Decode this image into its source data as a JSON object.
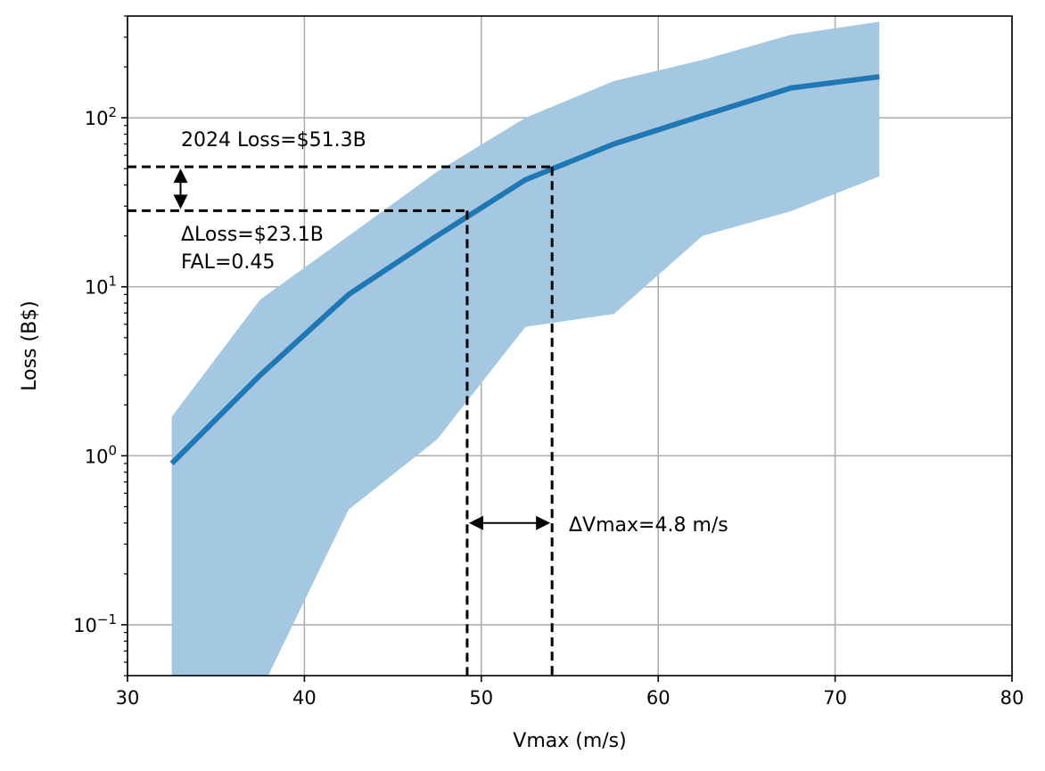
{
  "chart_data": {
    "type": "line",
    "title": "",
    "xlabel": "Vmax (m/s)",
    "ylabel": "Loss (B$)",
    "xlim": [
      30,
      80
    ],
    "ylim": [
      0.05,
      400
    ],
    "y_scale": "log",
    "grid": true,
    "x_ticks": [
      30,
      40,
      50,
      60,
      70,
      80
    ],
    "x_tick_labels": [
      "30",
      "40",
      "50",
      "60",
      "70",
      "80"
    ],
    "y_ticks": [
      0.1,
      1,
      10,
      100
    ],
    "y_tick_labels": [
      {
        "base": "10",
        "exp": "−1"
      },
      {
        "base": "10",
        "exp": "0"
      },
      {
        "base": "10",
        "exp": "1"
      },
      {
        "base": "10",
        "exp": "2"
      }
    ],
    "series": [
      {
        "color": "#1f77b4",
        "x": [
          32.5,
          37.5,
          42.5,
          47.5,
          52.5,
          57.5,
          62.5,
          67.5,
          72.5
        ],
        "y": [
          0.9,
          3.0,
          9.0,
          20.0,
          43.0,
          70.0,
          103.0,
          150.0,
          175.0
        ]
      }
    ],
    "band": {
      "color": "#a4c8e1",
      "x": [
        32.5,
        37.5,
        42.5,
        47.5,
        52.5,
        57.5,
        62.5,
        67.5,
        72.5
      ],
      "upper": [
        1.7,
        8.4,
        20.0,
        48.0,
        100.0,
        165.0,
        220.0,
        310.0,
        370.0
      ],
      "lower": [
        0.03,
        0.04,
        0.48,
        1.25,
        5.8,
        6.9,
        20.0,
        28.0,
        45.0
      ]
    },
    "reference_lines": {
      "loss_high": 51.3,
      "loss_low": 28.2,
      "vmax_low": 49.2,
      "vmax_high": 54.0,
      "arrow_x": 33.0,
      "arrow_y": 0.4
    },
    "annotations": {
      "loss_2024": "2024 Loss=$51.3B",
      "delta_loss": "ΔLoss=$23.1B",
      "fal": "FAL=0.45",
      "delta_vmax": "ΔVmax=4.8 m/s"
    }
  }
}
